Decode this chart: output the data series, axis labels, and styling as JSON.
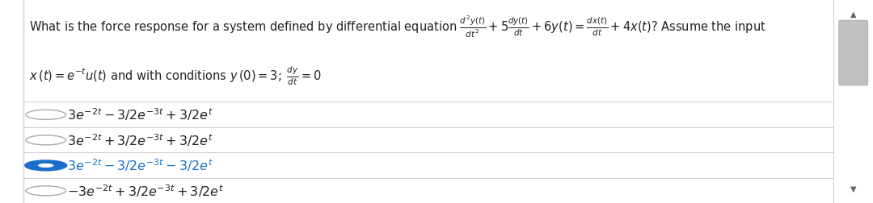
{
  "background_color": "#ffffff",
  "border_color": "#dddddd",
  "text_color": "#222222",
  "divider_color": "#cccccc",
  "radio_unselected_border": "#aaaaaa",
  "radio_selected_color": "#1a6fcd",
  "font_size_question": 10.5,
  "font_size_options": 11.5,
  "selected_option": 2,
  "scrollbar_bg": "#f0f0f0",
  "scrollbar_thumb": "#b0b0b0",
  "q_line1_normal": "What is the force response for a system defined by differential equation ",
  "q_line1_math": "$\\frac{d^2y(t)}{dt^2} + 5\\frac{dy(t)}{dt} + 6y(t) = \\frac{dx(t)}{dt} + 4x(t)$",
  "q_line1_tail": "? Assume the input",
  "q_line2_math": "$x\\,(t) = e^{-t}u(t)$",
  "q_line2_normal": " and with conditions ",
  "q_line2_math2": "$y\\,(0) = 3;\\;\\frac{dy}{dt} = 0$",
  "option_texts": [
    "$3e^{-2t} - 3/2e^{-3t} + 3/2e^{t}$",
    "$3e^{-2t} + 3/2e^{-3t} + 3/2e^{t}$",
    "$3e^{-2t} - 3/2e^{-3t} - 3/2e^{t}$",
    "$-3e^{-2t} + 3/2e^{-3t} + 3/2e^{t}$"
  ]
}
